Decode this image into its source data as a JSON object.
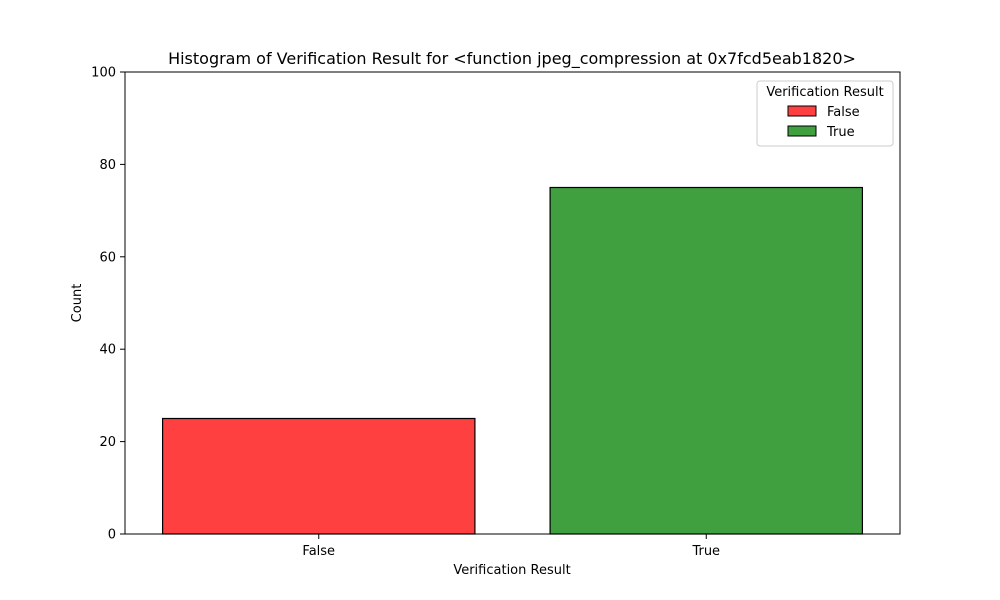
{
  "chart_data": {
    "type": "bar",
    "title": "Histogram of Verification Result for <function jpeg_compression at 0x7fcd5eab1820>",
    "xlabel": "Verification Result",
    "ylabel": "Count",
    "categories": [
      "False",
      "True"
    ],
    "values": [
      25,
      75
    ],
    "colors": [
      "#ff4040",
      "#40a040"
    ],
    "ylim": [
      0,
      100
    ],
    "yticks": [
      0,
      20,
      40,
      60,
      80,
      100
    ],
    "grid": false,
    "legend": {
      "title": "Verification Result",
      "placement": "top-right",
      "entries": [
        {
          "label": "False",
          "color": "#ff4040"
        },
        {
          "label": "True",
          "color": "#40a040"
        }
      ]
    }
  }
}
